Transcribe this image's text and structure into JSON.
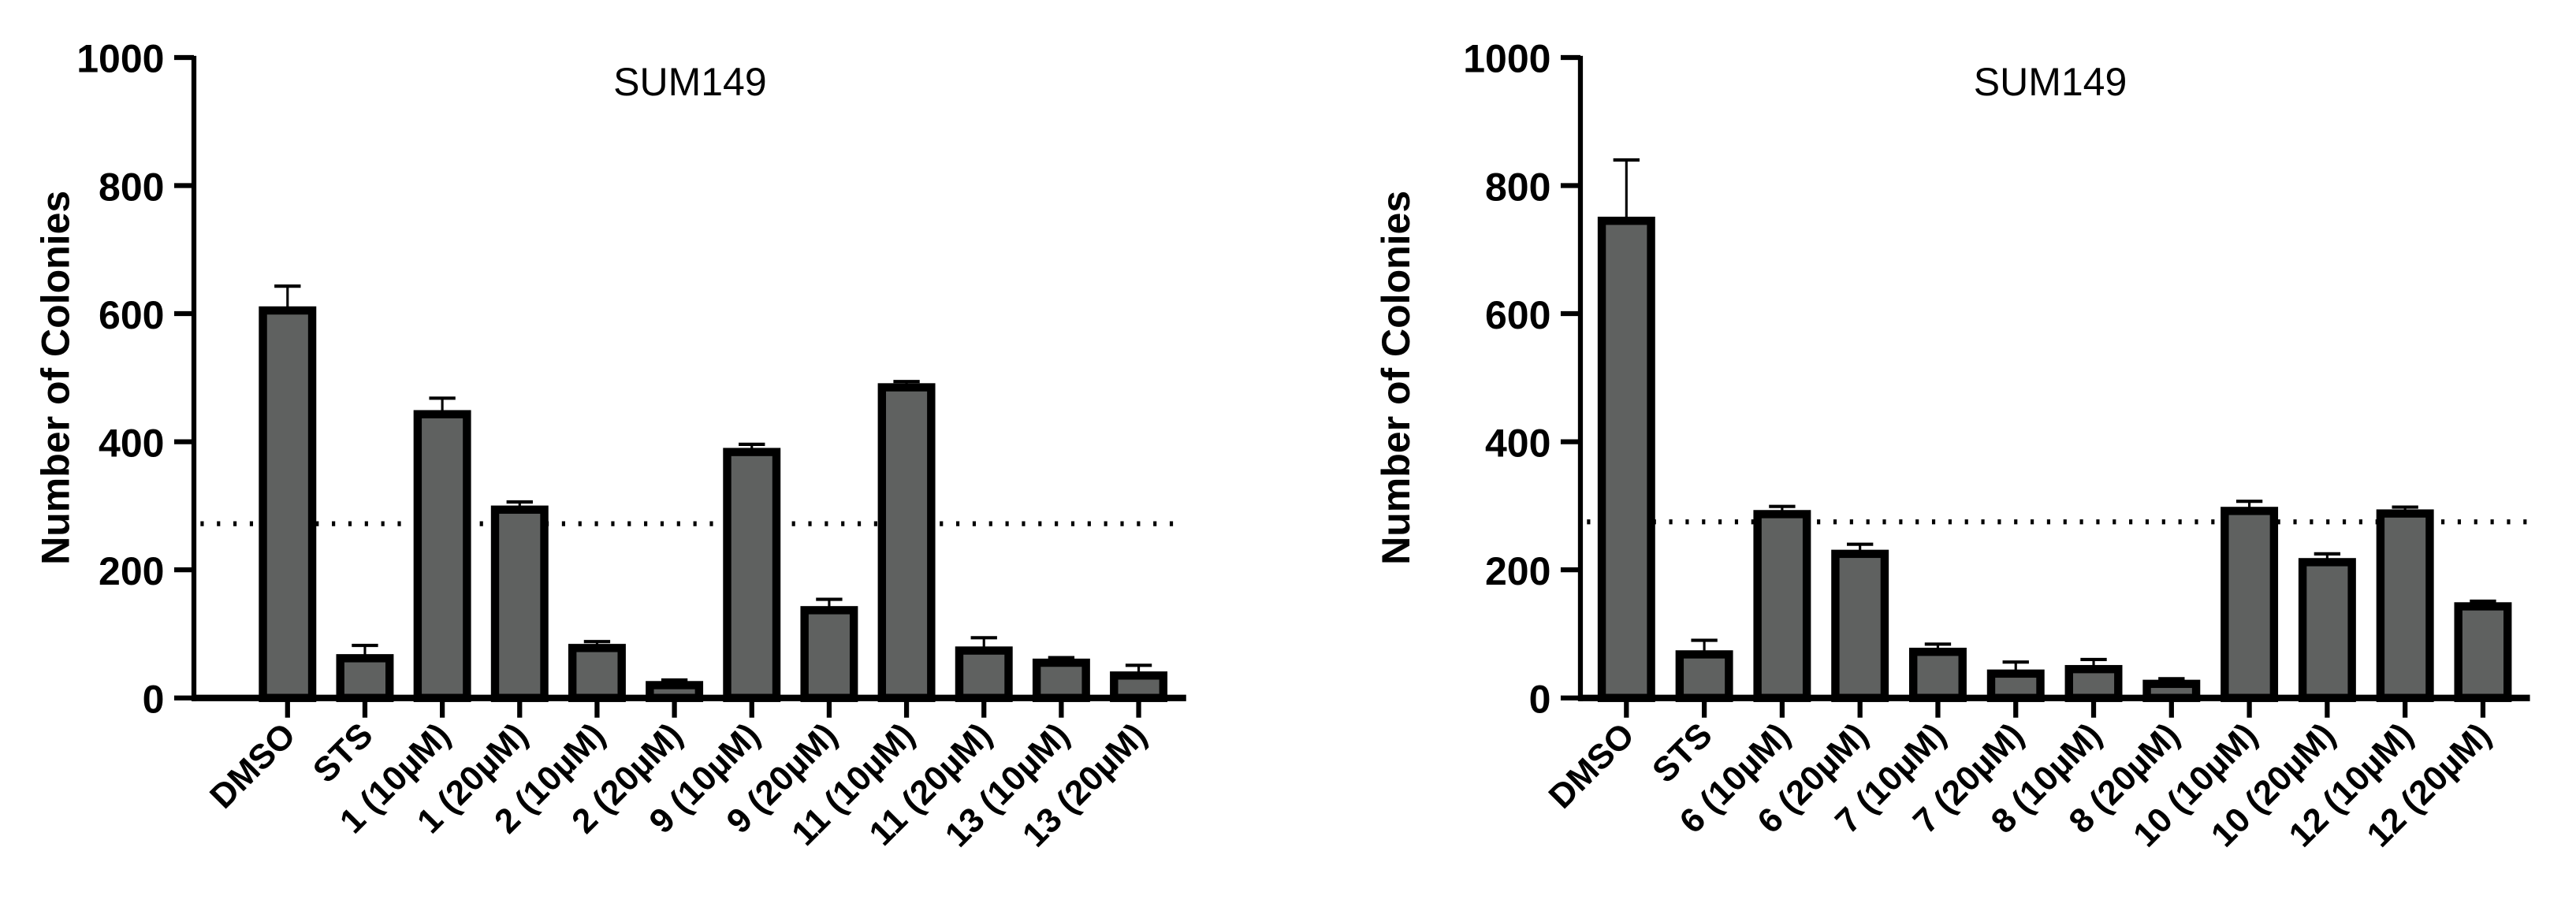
{
  "colors": {
    "bar_fill": "#5f6160",
    "bar_stroke": "#000000",
    "reference_line": "#000000"
  },
  "chart_data": [
    {
      "type": "bar",
      "title": "SUM149",
      "xlabel": "",
      "ylabel": "Number of Colonies",
      "ylim": [
        0,
        1000
      ],
      "yticks": [
        0,
        200,
        400,
        600,
        800,
        1000
      ],
      "grid": false,
      "reference_line": 272,
      "categories": [
        "DMSO",
        "STS",
        "1 (10µM)",
        "1 (20µM)",
        "2 (10µM)",
        "2 (20µM)",
        "9 (10µM)",
        "9 (20µM)",
        "11 (10µM)",
        "11 (20µM)",
        "13 (10µM)",
        "13 (20µM)"
      ],
      "values": [
        605,
        62,
        443,
        294,
        78,
        20,
        384,
        137,
        485,
        74,
        55,
        35
      ],
      "errors": [
        38,
        20,
        25,
        12,
        10,
        8,
        12,
        17,
        9,
        20,
        8,
        16
      ]
    },
    {
      "type": "bar",
      "title": "SUM149",
      "xlabel": "",
      "ylabel": "Number of Colonies",
      "ylim": [
        0,
        1000
      ],
      "yticks": [
        0,
        200,
        400,
        600,
        800,
        1000
      ],
      "grid": false,
      "reference_line": 275,
      "categories": [
        "DMSO",
        "STS",
        "6 (10µM)",
        "6 (20µM)",
        "7 (10µM)",
        "7 (20µM)",
        "8 (10µM)",
        "8 (20µM)",
        "10 (10µM)",
        "10 (20µM)",
        "12 (10µM)",
        "12 (20µM)"
      ],
      "values": [
        745,
        68,
        287,
        225,
        72,
        38,
        45,
        22,
        292,
        212,
        288,
        143
      ],
      "errors": [
        95,
        22,
        12,
        15,
        12,
        18,
        15,
        8,
        15,
        13,
        10,
        8
      ]
    }
  ]
}
